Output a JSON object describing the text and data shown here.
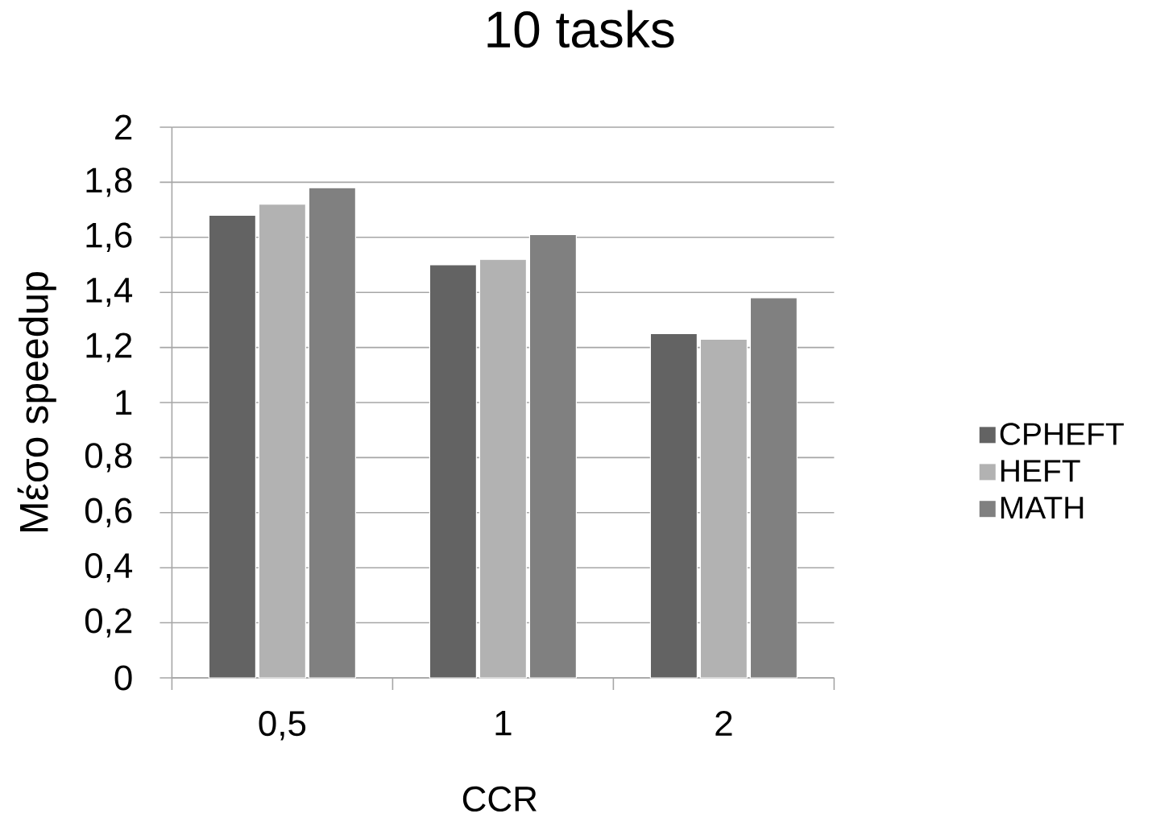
{
  "chart_data": {
    "type": "bar",
    "title": "10 tasks",
    "xlabel": "CCR",
    "ylabel": "Μέσο speedup",
    "categories": [
      "0,5",
      "1",
      "2"
    ],
    "series": [
      {
        "name": "CPHEFT",
        "color": "#636363",
        "values": [
          1.68,
          1.5,
          1.25
        ]
      },
      {
        "name": "HEFT",
        "color": "#b2b2b2",
        "values": [
          1.72,
          1.52,
          1.23
        ]
      },
      {
        "name": "MATH",
        "color": "#808080",
        "values": [
          1.78,
          1.61,
          1.38
        ]
      }
    ],
    "ylim": [
      0,
      2
    ],
    "yticks": [
      0,
      {
        "value": 0.2,
        "label": "0,2"
      },
      {
        "value": 0.4,
        "label": "0,4"
      },
      {
        "value": 0.6,
        "label": "0,6"
      },
      {
        "value": 0.8,
        "label": "0,8"
      },
      1,
      {
        "value": 1.2,
        "label": "1,2"
      },
      {
        "value": 1.4,
        "label": "1,4"
      },
      {
        "value": 1.6,
        "label": "1,6"
      },
      {
        "value": 1.8,
        "label": "1,8"
      },
      2
    ],
    "grid": "y",
    "legend": "right"
  }
}
